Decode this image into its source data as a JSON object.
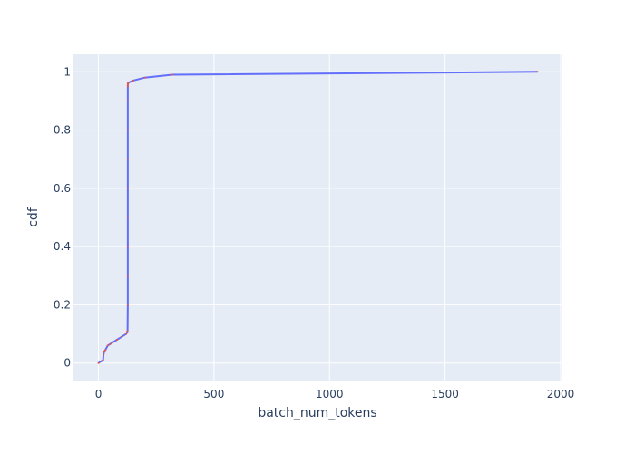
{
  "chart_data": {
    "type": "line",
    "title": "",
    "xlabel": "batch_num_tokens",
    "ylabel": "cdf",
    "xlim": [
      -112,
      2008
    ],
    "ylim": [
      -0.06,
      1.06
    ],
    "x_ticks": [
      0,
      500,
      1000,
      1500,
      2000
    ],
    "x_tick_labels": [
      "0",
      "500",
      "1000",
      "1500",
      "2000"
    ],
    "y_ticks": [
      0,
      0.2,
      0.4,
      0.6,
      0.8,
      1
    ],
    "y_tick_labels": [
      "0",
      "0.2",
      "0.4",
      "0.6",
      "0.8",
      "1"
    ],
    "grid": true,
    "legend": "none",
    "colors": {
      "plot_bg": "#e5ecf6",
      "grid": "#ffffff",
      "line": "#636efa",
      "markers": "#ef553b",
      "text": "#2a3f5f"
    },
    "series": [
      {
        "x": [
          0,
          20,
          22,
          25,
          30,
          40,
          50,
          60,
          80,
          100,
          120,
          126,
          127,
          127,
          127,
          127,
          127,
          127,
          127,
          127,
          127,
          127,
          128,
          128,
          128,
          150,
          200,
          320,
          1900
        ],
        "y": [
          0,
          0.01,
          0.03,
          0.04,
          0.045,
          0.06,
          0.065,
          0.07,
          0.08,
          0.09,
          0.1,
          0.11,
          0.2,
          0.3,
          0.4,
          0.5,
          0.6,
          0.7,
          0.8,
          0.9,
          0.95,
          0.955,
          0.96,
          0.961,
          0.962,
          0.97,
          0.98,
          0.99,
          1
        ]
      }
    ]
  }
}
